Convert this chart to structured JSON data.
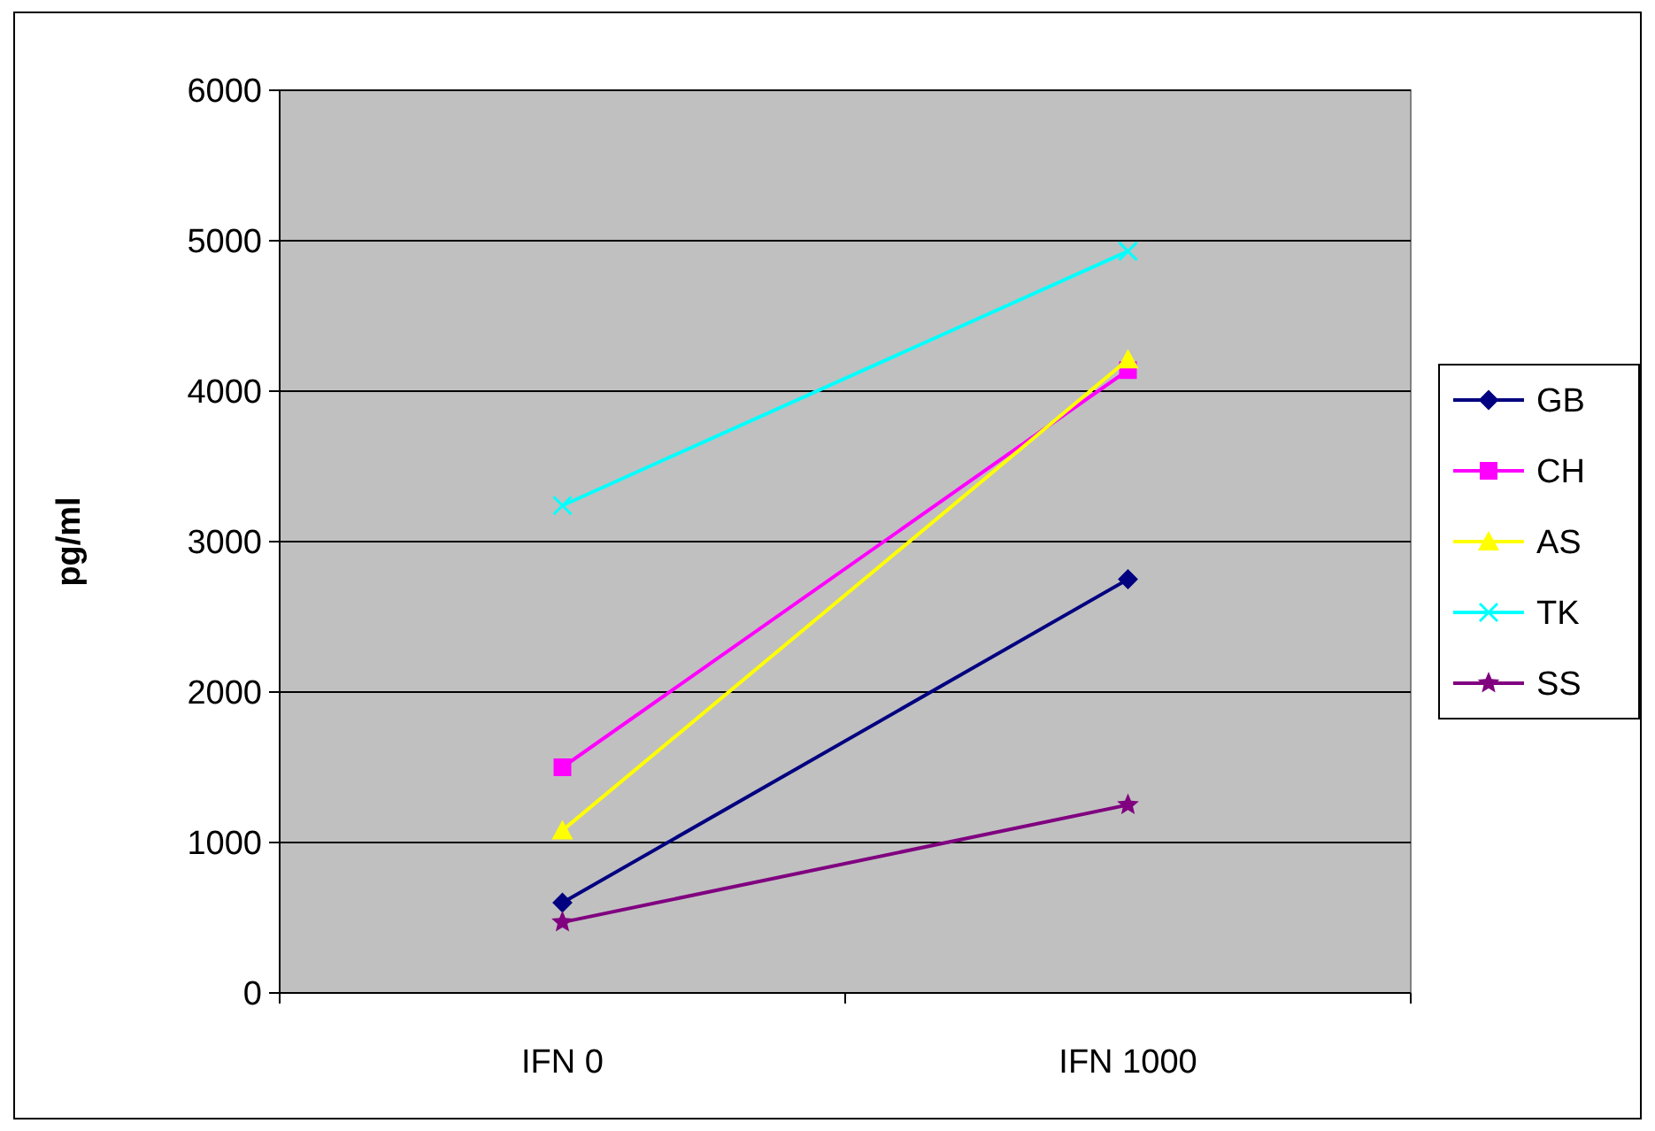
{
  "chart_data": {
    "type": "line",
    "ylabel": "pg/ml",
    "categories": [
      "IFN 0",
      "IFN 1000"
    ],
    "ylim": [
      0,
      6000
    ],
    "yticks": [
      0,
      1000,
      2000,
      3000,
      4000,
      5000,
      6000
    ],
    "grid": "y",
    "legend": "right",
    "series": [
      {
        "name": "GB",
        "color": "#000080",
        "marker": "diamond",
        "values": [
          600,
          2750
        ]
      },
      {
        "name": "CH",
        "color": "#ff00ff",
        "marker": "square",
        "values": [
          1500,
          4140
        ]
      },
      {
        "name": "AS",
        "color": "#ffff00",
        "marker": "triangle",
        "values": [
          1080,
          4210
        ]
      },
      {
        "name": "TK",
        "color": "#00ffff",
        "marker": "cross",
        "values": [
          3240,
          4930
        ]
      },
      {
        "name": "SS",
        "color": "#800080",
        "marker": "star",
        "values": [
          470,
          1250
        ]
      }
    ]
  }
}
